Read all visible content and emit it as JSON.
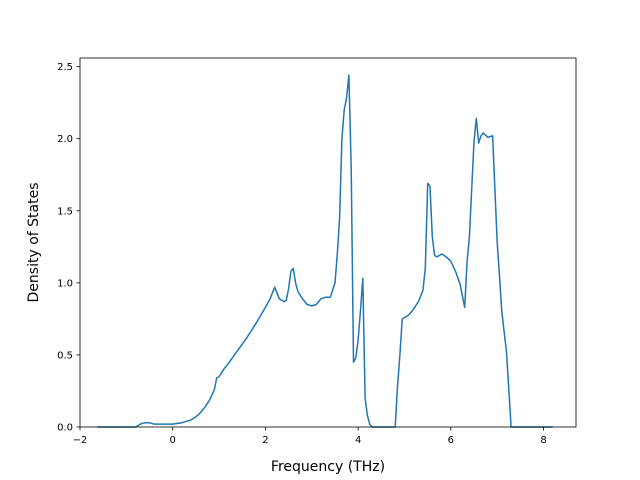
{
  "chart_data": {
    "type": "line",
    "title": "",
    "xlabel": "Frequency (THz)",
    "ylabel": "Density of States",
    "xlim": [
      -2.0,
      8.7
    ],
    "ylim": [
      0.0,
      2.56
    ],
    "grid": false,
    "legend": "none",
    "x_ticks": [
      -2,
      0,
      2,
      4,
      6,
      8
    ],
    "x_tick_labels": [
      "−2",
      "0",
      "2",
      "4",
      "6",
      "8"
    ],
    "y_ticks": [
      0.0,
      0.5,
      1.0,
      1.5,
      2.0,
      2.5
    ],
    "y_tick_labels": [
      "0.0",
      "0.5",
      "1.0",
      "1.5",
      "2.0",
      "2.5"
    ],
    "series": [
      {
        "color": "#1f77b4",
        "x": [
          -1.63,
          -0.8,
          -0.75,
          -0.7,
          -0.6,
          -0.5,
          -0.4,
          -0.3,
          -0.2,
          0.0,
          0.2,
          0.4,
          0.5,
          0.6,
          0.7,
          0.8,
          0.9,
          0.95,
          1.0,
          1.1,
          1.2,
          1.4,
          1.6,
          1.8,
          2.0,
          2.1,
          2.2,
          2.3,
          2.4,
          2.45,
          2.5,
          2.55,
          2.6,
          2.65,
          2.7,
          2.8,
          2.9,
          3.0,
          3.1,
          3.2,
          3.3,
          3.4,
          3.5,
          3.55,
          3.6,
          3.65,
          3.7,
          3.75,
          3.8,
          3.85,
          3.9,
          3.95,
          4.0,
          4.05,
          4.1,
          4.15,
          4.2,
          4.25,
          4.3,
          4.35,
          4.4,
          4.45,
          4.5,
          4.8,
          4.85,
          4.9,
          4.95,
          5.0,
          5.1,
          5.2,
          5.3,
          5.4,
          5.45,
          5.5,
          5.55,
          5.6,
          5.65,
          5.7,
          5.75,
          5.8,
          5.9,
          6.0,
          6.1,
          6.2,
          6.3,
          6.35,
          6.4,
          6.45,
          6.5,
          6.55,
          6.6,
          6.65,
          6.7,
          6.8,
          6.9,
          6.95,
          7.0,
          7.05,
          7.1,
          7.2,
          7.3,
          7.4,
          7.5,
          8.2
        ],
        "y": [
          0.0,
          0.0,
          0.01,
          0.02,
          0.03,
          0.03,
          0.02,
          0.02,
          0.02,
          0.02,
          0.03,
          0.05,
          0.07,
          0.1,
          0.14,
          0.19,
          0.26,
          0.34,
          0.35,
          0.4,
          0.44,
          0.53,
          0.62,
          0.72,
          0.83,
          0.89,
          0.97,
          0.89,
          0.87,
          0.88,
          0.96,
          1.08,
          1.1,
          1.0,
          0.94,
          0.89,
          0.85,
          0.84,
          0.85,
          0.89,
          0.9,
          0.9,
          1.0,
          1.2,
          1.45,
          2.0,
          2.2,
          2.28,
          2.44,
          1.8,
          0.45,
          0.48,
          0.6,
          0.8,
          1.03,
          0.2,
          0.08,
          0.02,
          0.0,
          0.0,
          0.0,
          0.0,
          0.0,
          0.0,
          0.28,
          0.5,
          0.75,
          0.76,
          0.78,
          0.82,
          0.87,
          0.95,
          1.1,
          1.69,
          1.67,
          1.32,
          1.19,
          1.18,
          1.19,
          1.2,
          1.18,
          1.15,
          1.08,
          0.99,
          0.83,
          1.15,
          1.32,
          1.65,
          1.98,
          2.14,
          1.97,
          2.02,
          2.04,
          2.01,
          2.02,
          1.65,
          1.28,
          1.05,
          0.8,
          0.52,
          0.0,
          0.0,
          0.0,
          0.0
        ]
      }
    ]
  }
}
